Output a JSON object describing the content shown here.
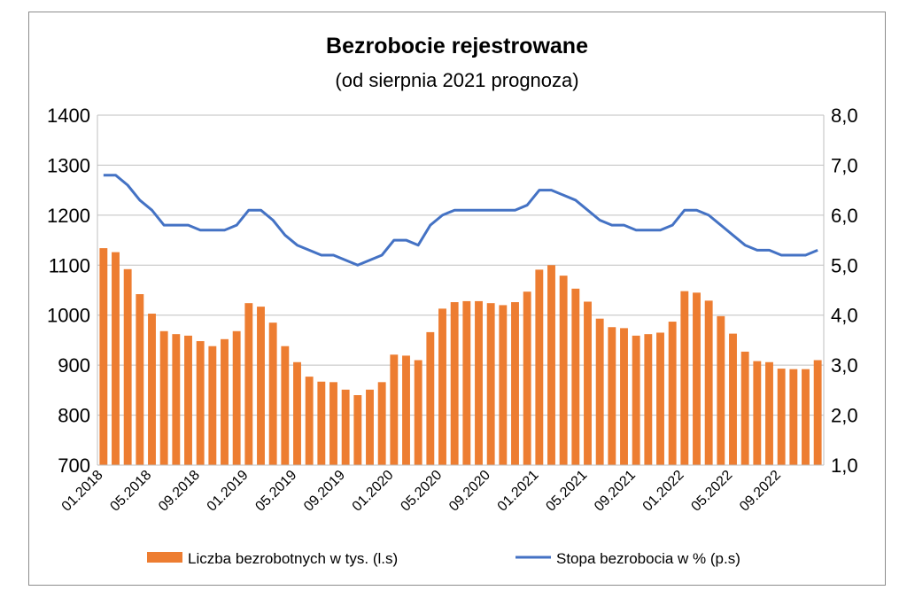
{
  "chart_data": {
    "type": "bar+line",
    "title": "Bezrobocie rejestrowane",
    "subtitle": "(od sierpnia 2021 prognoza)",
    "categories": [
      "01.2018",
      "02.2018",
      "03.2018",
      "04.2018",
      "05.2018",
      "06.2018",
      "07.2018",
      "08.2018",
      "09.2018",
      "10.2018",
      "11.2018",
      "12.2018",
      "01.2019",
      "02.2019",
      "03.2019",
      "04.2019",
      "05.2019",
      "06.2019",
      "07.2019",
      "08.2019",
      "09.2019",
      "10.2019",
      "11.2019",
      "12.2019",
      "01.2020",
      "02.2020",
      "03.2020",
      "04.2020",
      "05.2020",
      "06.2020",
      "07.2020",
      "08.2020",
      "09.2020",
      "10.2020",
      "11.2020",
      "12.2020",
      "01.2021",
      "02.2021",
      "03.2021",
      "04.2021",
      "05.2021",
      "06.2021",
      "07.2021",
      "08.2021",
      "09.2021",
      "10.2021",
      "11.2021",
      "12.2021",
      "01.2022",
      "02.2022",
      "03.2022",
      "04.2022",
      "05.2022",
      "06.2022",
      "07.2022",
      "08.2022",
      "09.2022",
      "10.2022",
      "11.2022",
      "12.2022"
    ],
    "tick_labels": [
      "01.2018",
      "05.2018",
      "09.2018",
      "01.2019",
      "05.2019",
      "09.2019",
      "01.2020",
      "05.2020",
      "09.2020",
      "01.2021",
      "05.2021",
      "09.2021",
      "01.2022",
      "05.2022",
      "09.2022"
    ],
    "series": [
      {
        "name": "Liczba bezrobotnych w tys. (l.s)",
        "type": "bar",
        "axis": "left",
        "color": "#ED7D31",
        "values": [
          1134,
          1126,
          1092,
          1042,
          1003,
          968,
          962,
          959,
          948,
          938,
          952,
          968,
          1024,
          1017,
          985,
          938,
          906,
          877,
          867,
          866,
          851,
          840,
          851,
          866,
          921,
          919,
          910,
          966,
          1013,
          1026,
          1028,
          1028,
          1024,
          1020,
          1026,
          1047,
          1091,
          1100,
          1079,
          1053,
          1027,
          993,
          976,
          974,
          959,
          962,
          965,
          987,
          1048,
          1045,
          1029,
          998,
          963,
          927,
          908,
          906,
          893,
          892,
          892,
          910
        ]
      },
      {
        "name": "Stopa bezrobocia w % (p.s)",
        "type": "line",
        "axis": "right",
        "color": "#4472C4",
        "values": [
          6.8,
          6.8,
          6.6,
          6.3,
          6.1,
          5.8,
          5.8,
          5.8,
          5.7,
          5.7,
          5.7,
          5.8,
          6.1,
          6.1,
          5.9,
          5.6,
          5.4,
          5.3,
          5.2,
          5.2,
          5.1,
          5.0,
          5.1,
          5.2,
          5.5,
          5.5,
          5.4,
          5.8,
          6.0,
          6.1,
          6.1,
          6.1,
          6.1,
          6.1,
          6.1,
          6.2,
          6.5,
          6.5,
          6.4,
          6.3,
          6.1,
          5.9,
          5.8,
          5.8,
          5.7,
          5.7,
          5.7,
          5.8,
          6.1,
          6.1,
          6.0,
          5.8,
          5.6,
          5.4,
          5.3,
          5.3,
          5.2,
          5.2,
          5.2,
          5.3
        ]
      }
    ],
    "y_left": {
      "range": [
        700,
        1400
      ],
      "ticks": [
        "700",
        "800",
        "900",
        "1000",
        "1100",
        "1200",
        "1300",
        "1400"
      ]
    },
    "y_right": {
      "range": [
        1.0,
        8.0
      ],
      "ticks": [
        "1,0",
        "2,0",
        "3,0",
        "4,0",
        "5,0",
        "6,0",
        "7,0",
        "8,0"
      ]
    },
    "grid": true,
    "legend": "bottom"
  }
}
